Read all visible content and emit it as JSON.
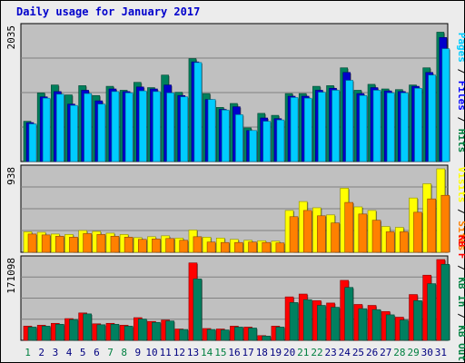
{
  "title": "Daily usage for January 2017",
  "chart_data": [
    {
      "type": "bar",
      "panel": "pages-files-hits",
      "categories": [
        "1",
        "2",
        "3",
        "4",
        "5",
        "6",
        "7",
        "8",
        "9",
        "10",
        "11",
        "12",
        "13",
        "14",
        "15",
        "16",
        "17",
        "18",
        "19",
        "20",
        "21",
        "22",
        "23",
        "24",
        "25",
        "26",
        "27",
        "28",
        "29",
        "30",
        "31"
      ],
      "weekend_days": [
        "1",
        "7",
        "8",
        "14",
        "15",
        "21",
        "22",
        "28",
        "29"
      ],
      "max_label": "2035",
      "ymax": 2035,
      "right_label": [
        {
          "text": "Pages",
          "color": "#00ccff"
        },
        {
          "text": " / ",
          "color": "#000000"
        },
        {
          "text": "Files",
          "color": "#0000ff"
        },
        {
          "text": " / ",
          "color": "#000000"
        },
        {
          "text": "Hits",
          "color": "#008040"
        }
      ],
      "series": [
        {
          "name": "Hits",
          "color": "#00805c",
          "values": [
            610,
            1040,
            1160,
            1010,
            1150,
            1000,
            1140,
            1080,
            1200,
            1120,
            1310,
            1050,
            1560,
            1030,
            820,
            880,
            510,
            730,
            700,
            1030,
            1030,
            1140,
            1150,
            1420,
            1080,
            1170,
            1100,
            1090,
            1160,
            1420,
            1960
          ]
        },
        {
          "name": "Files",
          "color": "#0000cc",
          "values": [
            590,
            980,
            1060,
            870,
            1080,
            920,
            1100,
            1060,
            1130,
            1100,
            1160,
            1000,
            1510,
            940,
            790,
            830,
            470,
            660,
            650,
            990,
            990,
            1080,
            1110,
            1350,
            1030,
            1120,
            1070,
            1060,
            1140,
            1350,
            1880
          ]
        },
        {
          "name": "Pages",
          "color": "#00ccff",
          "values": [
            570,
            960,
            1020,
            850,
            1030,
            870,
            1060,
            1040,
            1070,
            1060,
            1040,
            980,
            1500,
            940,
            780,
            710,
            470,
            610,
            630,
            970,
            960,
            1050,
            1080,
            1230,
            1000,
            1080,
            1040,
            1040,
            1110,
            1310,
            1710
          ]
        }
      ]
    },
    {
      "type": "bar",
      "panel": "visits-sites",
      "max_label": "938",
      "ymax": 938,
      "right_label": [
        {
          "text": "Visits",
          "color": "#ffff00"
        },
        {
          "text": " / ",
          "color": "#000000"
        },
        {
          "text": "Sites",
          "color": "#ff8000"
        }
      ],
      "series": [
        {
          "name": "Visits",
          "color": "#ffff00",
          "values": [
            230,
            225,
            205,
            200,
            245,
            235,
            215,
            200,
            165,
            175,
            185,
            160,
            250,
            170,
            160,
            145,
            135,
            130,
            125,
            470,
            570,
            500,
            420,
            720,
            510,
            470,
            290,
            280,
            610,
            770,
            938
          ]
        },
        {
          "name": "Sites",
          "color": "#ff8000",
          "values": [
            205,
            195,
            180,
            170,
            210,
            200,
            180,
            170,
            145,
            150,
            155,
            135,
            175,
            115,
            110,
            110,
            115,
            110,
            105,
            400,
            470,
            410,
            330,
            560,
            430,
            360,
            230,
            230,
            450,
            600,
            640
          ]
        }
      ]
    },
    {
      "type": "bar",
      "panel": "kbf-kbin-kbout",
      "max_label": "171098",
      "ymax": 171098,
      "right_label": [
        {
          "text": "KB F",
          "color": "#ff0000"
        },
        {
          "text": " / ",
          "color": "#000000"
        },
        {
          "text": "KB In",
          "color": "#008040"
        },
        {
          "text": " / ",
          "color": "#000000"
        },
        {
          "text": "KB Out",
          "color": "#008040"
        }
      ],
      "series": [
        {
          "name": "KB F",
          "color": "#ff0000",
          "values": [
            30000,
            32000,
            36000,
            46000,
            58000,
            35000,
            36000,
            32000,
            48000,
            40000,
            43000,
            24000,
            164000,
            25000,
            24000,
            30000,
            28000,
            10000,
            30000,
            92000,
            98000,
            84000,
            79000,
            127000,
            76000,
            74000,
            61000,
            49000,
            97000,
            138000,
            171098
          ]
        },
        {
          "name": "KB Out",
          "color": "#008060",
          "values": [
            28000,
            30000,
            34000,
            44000,
            56000,
            33000,
            34000,
            30000,
            45000,
            38000,
            41000,
            23000,
            130000,
            23000,
            22000,
            28000,
            26000,
            9000,
            28000,
            80000,
            86000,
            74000,
            70000,
            112000,
            67000,
            65000,
            54000,
            43000,
            84000,
            120000,
            161000
          ]
        }
      ]
    }
  ]
}
